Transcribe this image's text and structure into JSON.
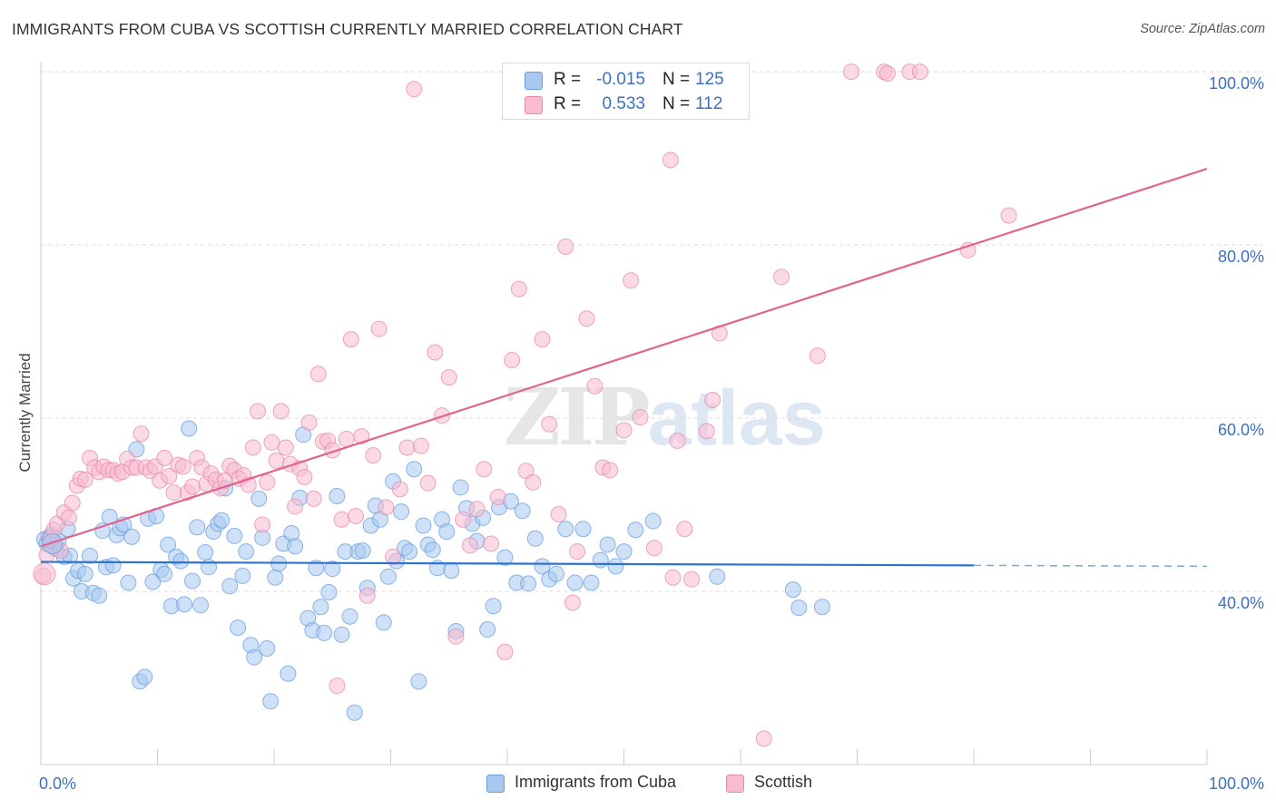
{
  "title": "IMMIGRANTS FROM CUBA VS SCOTTISH CURRENTLY MARRIED CORRELATION CHART",
  "source": "Source: ZipAtlas.com",
  "watermark": {
    "zip": "ZIP",
    "atlas": "atlas"
  },
  "stats": [
    {
      "r_label": "R =",
      "r_value": "-0.015",
      "n_label": "N =",
      "n_value": "125",
      "color": "#a8c8f0",
      "border": "#6a9de0"
    },
    {
      "r_label": "R =",
      "r_value": "0.533",
      "n_label": "N =",
      "n_value": "112",
      "color": "#f7bccf",
      "border": "#e889a8"
    }
  ],
  "legend": [
    {
      "label": "Immigrants from Cuba",
      "color": "#a8c8f0",
      "border": "#6a9de0"
    },
    {
      "label": "Scottish",
      "color": "#f7bccf",
      "border": "#e889a8"
    }
  ],
  "chart_data": {
    "type": "scatter",
    "title": "IMMIGRANTS FROM CUBA VS SCOTTISH CURRENTLY MARRIED CORRELATION CHART",
    "xlabel": "",
    "ylabel": "Currently Married",
    "xlim": [
      0,
      100
    ],
    "ylim": [
      20,
      102
    ],
    "x_tick_labels": [
      "0.0%",
      "100.0%"
    ],
    "y_ticks": [
      40,
      60,
      80,
      100
    ],
    "y_tick_labels": [
      "40.0%",
      "60.0%",
      "80.0%",
      "100.0%"
    ],
    "grid": true,
    "legend_position": "bottom",
    "series": [
      {
        "name": "Immigrants from Cuba",
        "color": "#6a9de0",
        "fill": "#a8c8f0",
        "trend": {
          "x": [
            0,
            80
          ],
          "y": [
            43.4,
            43.0
          ],
          "dashed_to": 100,
          "dashed_y": 42.9
        },
        "points": [
          [
            0.3,
            46.0
          ],
          [
            0.5,
            45.5
          ],
          [
            0.7,
            46.2
          ],
          [
            0.9,
            46.5
          ],
          [
            1.1,
            45.1
          ],
          [
            1.3,
            44.9
          ],
          [
            1.5,
            45.8
          ],
          [
            2.0,
            44.0
          ],
          [
            2.3,
            47.2
          ],
          [
            2.5,
            44.1
          ],
          [
            2.8,
            41.5
          ],
          [
            3.2,
            42.4
          ],
          [
            3.5,
            40.0
          ],
          [
            3.8,
            42.0
          ],
          [
            4.2,
            44.1
          ],
          [
            4.5,
            39.8
          ],
          [
            5.0,
            39.5
          ],
          [
            5.3,
            47.0
          ],
          [
            5.6,
            42.8
          ],
          [
            5.9,
            48.6
          ],
          [
            6.2,
            43.0
          ],
          [
            6.5,
            46.5
          ],
          [
            6.8,
            47.3
          ],
          [
            7.1,
            47.7
          ],
          [
            7.5,
            41.0
          ],
          [
            7.8,
            46.3
          ],
          [
            8.2,
            56.4
          ],
          [
            8.5,
            29.6
          ],
          [
            8.9,
            30.1
          ],
          [
            9.2,
            48.4
          ],
          [
            9.6,
            41.1
          ],
          [
            9.9,
            48.7
          ],
          [
            10.3,
            42.5
          ],
          [
            10.6,
            42.0
          ],
          [
            10.9,
            45.4
          ],
          [
            11.2,
            38.3
          ],
          [
            11.6,
            44.0
          ],
          [
            12.0,
            43.5
          ],
          [
            12.3,
            38.5
          ],
          [
            12.7,
            58.8
          ],
          [
            13.0,
            41.2
          ],
          [
            13.4,
            47.4
          ],
          [
            13.7,
            38.4
          ],
          [
            14.1,
            44.5
          ],
          [
            14.4,
            42.8
          ],
          [
            14.8,
            46.9
          ],
          [
            15.2,
            47.8
          ],
          [
            15.5,
            48.2
          ],
          [
            15.8,
            51.9
          ],
          [
            16.2,
            40.6
          ],
          [
            16.6,
            46.4
          ],
          [
            16.9,
            35.8
          ],
          [
            17.3,
            41.8
          ],
          [
            17.6,
            44.6
          ],
          [
            18.0,
            33.8
          ],
          [
            18.3,
            32.4
          ],
          [
            18.7,
            50.7
          ],
          [
            19.0,
            46.2
          ],
          [
            19.4,
            33.4
          ],
          [
            19.7,
            27.3
          ],
          [
            20.1,
            41.6
          ],
          [
            20.4,
            43.2
          ],
          [
            20.8,
            45.5
          ],
          [
            21.2,
            30.5
          ],
          [
            21.5,
            46.7
          ],
          [
            21.8,
            45.2
          ],
          [
            22.2,
            50.8
          ],
          [
            22.5,
            58.1
          ],
          [
            22.9,
            36.9
          ],
          [
            23.3,
            35.5
          ],
          [
            23.6,
            42.7
          ],
          [
            24.0,
            38.2
          ],
          [
            24.3,
            35.2
          ],
          [
            24.7,
            39.9
          ],
          [
            25.0,
            42.6
          ],
          [
            25.4,
            51.0
          ],
          [
            25.8,
            35.0
          ],
          [
            26.1,
            44.6
          ],
          [
            26.5,
            37.1
          ],
          [
            26.9,
            26.0
          ],
          [
            27.2,
            44.6
          ],
          [
            27.6,
            44.7
          ],
          [
            28.0,
            40.4
          ],
          [
            28.3,
            47.6
          ],
          [
            28.7,
            49.9
          ],
          [
            29.1,
            48.3
          ],
          [
            29.4,
            36.4
          ],
          [
            29.8,
            41.7
          ],
          [
            30.2,
            52.7
          ],
          [
            30.5,
            43.5
          ],
          [
            30.9,
            49.2
          ],
          [
            31.2,
            45.0
          ],
          [
            31.6,
            44.6
          ],
          [
            32.0,
            54.1
          ],
          [
            32.4,
            29.6
          ],
          [
            32.8,
            47.6
          ],
          [
            33.2,
            45.4
          ],
          [
            33.6,
            44.8
          ],
          [
            34.0,
            42.7
          ],
          [
            34.4,
            48.3
          ],
          [
            34.8,
            46.9
          ],
          [
            35.2,
            42.4
          ],
          [
            35.6,
            35.4
          ],
          [
            36.0,
            52.0
          ],
          [
            36.5,
            49.6
          ],
          [
            37.0,
            47.8
          ],
          [
            37.4,
            45.8
          ],
          [
            37.9,
            48.5
          ],
          [
            38.3,
            35.6
          ],
          [
            38.8,
            38.3
          ],
          [
            39.3,
            49.7
          ],
          [
            39.8,
            43.9
          ],
          [
            40.3,
            50.4
          ],
          [
            40.8,
            41.0
          ],
          [
            41.3,
            49.3
          ],
          [
            41.8,
            40.9
          ],
          [
            42.4,
            46.1
          ],
          [
            43.0,
            42.9
          ],
          [
            43.6,
            41.4
          ],
          [
            44.2,
            42.0
          ],
          [
            45.0,
            47.2
          ],
          [
            45.8,
            41.0
          ],
          [
            46.5,
            47.2
          ],
          [
            47.2,
            41.0
          ],
          [
            48.0,
            43.6
          ],
          [
            48.6,
            45.4
          ],
          [
            49.3,
            42.9
          ],
          [
            50.0,
            44.6
          ],
          [
            51.0,
            47.1
          ],
          [
            52.5,
            48.1
          ],
          [
            58.0,
            41.7
          ],
          [
            64.5,
            40.2
          ],
          [
            65.0,
            38.1
          ],
          [
            67.0,
            38.2
          ]
        ]
      },
      {
        "name": "Scottish",
        "color": "#e889a8",
        "fill": "#f7bccf",
        "trend": {
          "x": [
            0,
            100
          ],
          "y": [
            45.2,
            88.8
          ]
        },
        "points": [
          [
            0.2,
            41.8
          ],
          [
            0.5,
            44.2
          ],
          [
            0.8,
            46.0
          ],
          [
            1.1,
            47.1
          ],
          [
            1.4,
            47.8
          ],
          [
            1.7,
            44.7
          ],
          [
            2.0,
            49.1
          ],
          [
            2.4,
            48.5
          ],
          [
            2.7,
            50.2
          ],
          [
            3.1,
            52.2
          ],
          [
            3.4,
            53.0
          ],
          [
            3.8,
            52.9
          ],
          [
            4.2,
            55.4
          ],
          [
            4.6,
            54.3
          ],
          [
            5.0,
            53.8
          ],
          [
            5.4,
            54.4
          ],
          [
            5.8,
            54.0
          ],
          [
            6.2,
            54.0
          ],
          [
            6.6,
            53.6
          ],
          [
            7.0,
            53.8
          ],
          [
            7.4,
            55.3
          ],
          [
            7.8,
            54.3
          ],
          [
            8.2,
            54.3
          ],
          [
            8.6,
            58.2
          ],
          [
            9.0,
            54.3
          ],
          [
            9.4,
            53.9
          ],
          [
            9.8,
            54.4
          ],
          [
            10.2,
            52.8
          ],
          [
            10.6,
            55.4
          ],
          [
            11.0,
            53.3
          ],
          [
            11.4,
            51.4
          ],
          [
            11.8,
            54.6
          ],
          [
            12.2,
            54.4
          ],
          [
            12.6,
            51.4
          ],
          [
            13.0,
            52.1
          ],
          [
            13.4,
            55.4
          ],
          [
            13.8,
            54.3
          ],
          [
            14.2,
            52.4
          ],
          [
            14.6,
            53.6
          ],
          [
            15.0,
            52.9
          ],
          [
            15.4,
            51.9
          ],
          [
            15.8,
            52.8
          ],
          [
            16.2,
            54.5
          ],
          [
            16.6,
            54.0
          ],
          [
            17.0,
            53.0
          ],
          [
            17.4,
            53.4
          ],
          [
            17.8,
            52.3
          ],
          [
            18.2,
            56.6
          ],
          [
            18.6,
            60.8
          ],
          [
            19.0,
            47.7
          ],
          [
            19.4,
            52.6
          ],
          [
            19.8,
            57.2
          ],
          [
            20.2,
            55.1
          ],
          [
            20.6,
            60.8
          ],
          [
            21.0,
            56.6
          ],
          [
            21.4,
            54.7
          ],
          [
            21.8,
            49.8
          ],
          [
            22.2,
            54.2
          ],
          [
            22.6,
            53.2
          ],
          [
            23.0,
            59.5
          ],
          [
            23.4,
            50.7
          ],
          [
            23.8,
            65.1
          ],
          [
            24.2,
            57.3
          ],
          [
            24.6,
            57.4
          ],
          [
            25.0,
            56.3
          ],
          [
            25.4,
            29.1
          ],
          [
            25.8,
            48.3
          ],
          [
            26.2,
            57.6
          ],
          [
            26.6,
            69.1
          ],
          [
            27.0,
            48.7
          ],
          [
            27.5,
            57.9
          ],
          [
            28.0,
            39.5
          ],
          [
            28.5,
            55.7
          ],
          [
            29.0,
            70.3
          ],
          [
            29.6,
            49.7
          ],
          [
            30.2,
            44.0
          ],
          [
            30.8,
            51.8
          ],
          [
            31.4,
            56.6
          ],
          [
            32.0,
            98.0
          ],
          [
            32.6,
            56.8
          ],
          [
            33.2,
            52.5
          ],
          [
            33.8,
            67.6
          ],
          [
            34.4,
            60.3
          ],
          [
            35.0,
            64.7
          ],
          [
            35.6,
            34.8
          ],
          [
            36.2,
            48.3
          ],
          [
            36.8,
            45.3
          ],
          [
            37.4,
            49.5
          ],
          [
            38.0,
            54.1
          ],
          [
            38.6,
            45.5
          ],
          [
            39.2,
            50.9
          ],
          [
            39.8,
            33.0
          ],
          [
            40.4,
            66.7
          ],
          [
            41.0,
            74.9
          ],
          [
            41.6,
            53.9
          ],
          [
            42.2,
            52.6
          ],
          [
            43.0,
            69.1
          ],
          [
            43.6,
            59.3
          ],
          [
            44.4,
            48.9
          ],
          [
            45.0,
            79.8
          ],
          [
            45.6,
            38.7
          ],
          [
            46.0,
            44.6
          ],
          [
            46.8,
            71.5
          ],
          [
            47.5,
            63.7
          ],
          [
            48.2,
            54.3
          ],
          [
            48.8,
            54.0
          ],
          [
            50.0,
            58.6
          ],
          [
            50.6,
            75.9
          ],
          [
            51.4,
            60.1
          ],
          [
            52.6,
            45.0
          ],
          [
            54.0,
            89.8
          ],
          [
            54.2,
            41.6
          ],
          [
            54.6,
            57.4
          ],
          [
            55.2,
            47.2
          ],
          [
            55.8,
            41.4
          ],
          [
            57.1,
            58.5
          ],
          [
            57.6,
            62.1
          ],
          [
            58.2,
            69.8
          ],
          [
            62.0,
            23.0
          ],
          [
            63.5,
            76.3
          ],
          [
            66.6,
            67.2
          ],
          [
            69.5,
            100.0
          ],
          [
            72.3,
            100.0
          ],
          [
            72.6,
            99.8
          ],
          [
            74.5,
            100.0
          ],
          [
            75.4,
            100.0
          ],
          [
            79.5,
            79.4
          ],
          [
            83.0,
            83.4
          ]
        ]
      }
    ]
  }
}
